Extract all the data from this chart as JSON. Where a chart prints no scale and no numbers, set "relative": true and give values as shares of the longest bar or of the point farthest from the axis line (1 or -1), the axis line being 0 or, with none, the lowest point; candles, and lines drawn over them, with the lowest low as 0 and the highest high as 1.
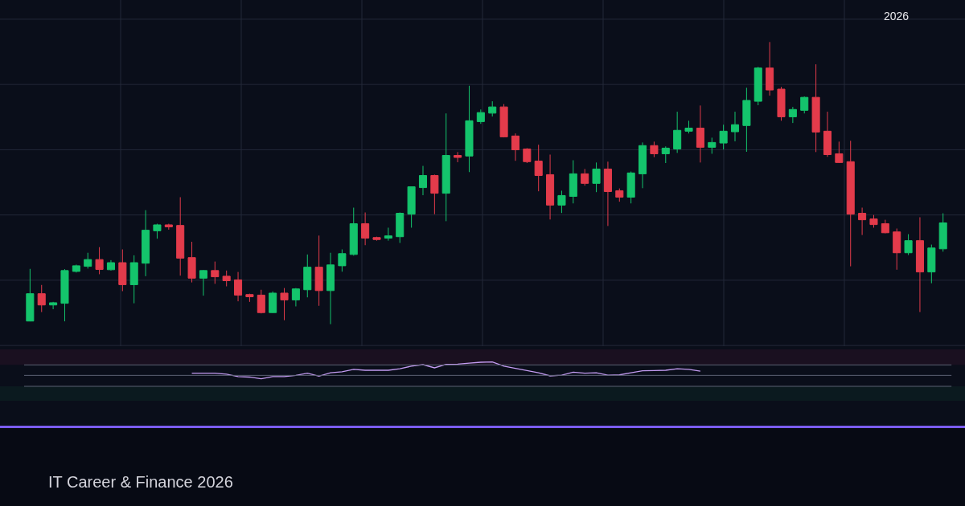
{
  "chart_data": [
    {
      "type": "candlestick",
      "subtitle": "IT Career & Finance 2026",
      "annotations": [
        "2026"
      ],
      "relative": true,
      "grid": true,
      "categories": [
        null,
        null,
        null,
        null,
        null,
        null,
        null,
        null,
        null,
        null,
        null,
        null,
        null,
        null,
        null,
        null,
        null,
        null,
        null,
        null,
        null,
        null,
        null,
        null,
        null,
        null,
        null,
        null,
        null,
        null,
        null,
        null,
        null,
        null,
        null,
        null,
        null,
        null,
        null,
        null,
        null,
        null,
        null,
        null,
        null,
        null,
        null,
        null,
        null,
        null,
        null,
        null,
        null,
        null,
        null,
        null,
        null,
        null,
        null,
        null,
        null,
        null,
        null,
        null,
        null,
        null,
        null,
        null,
        null,
        null,
        null,
        null,
        null,
        null,
        null,
        null,
        null,
        null,
        null,
        null
      ],
      "ohlc": [
        [
          0.011,
          0.196,
          0.01,
          0.108
        ],
        [
          0.108,
          0.139,
          0.043,
          0.068
        ],
        [
          0.068,
          0.079,
          0.053,
          0.076
        ],
        [
          0.074,
          0.195,
          0.01,
          0.19
        ],
        [
          0.187,
          0.211,
          0.183,
          0.207
        ],
        [
          0.205,
          0.253,
          0.197,
          0.229
        ],
        [
          0.229,
          0.273,
          0.177,
          0.194
        ],
        [
          0.193,
          0.227,
          0.19,
          0.218
        ],
        [
          0.218,
          0.265,
          0.117,
          0.14
        ],
        [
          0.14,
          0.244,
          0.074,
          0.218
        ],
        [
          0.216,
          0.404,
          0.17,
          0.333
        ],
        [
          0.331,
          0.356,
          0.303,
          0.352
        ],
        [
          0.352,
          0.356,
          0.335,
          0.345
        ],
        [
          0.35,
          0.45,
          0.172,
          0.234
        ],
        [
          0.236,
          0.292,
          0.148,
          0.163
        ],
        [
          0.163,
          0.192,
          0.101,
          0.19
        ],
        [
          0.19,
          0.222,
          0.143,
          0.168
        ],
        [
          0.17,
          0.19,
          0.134,
          0.154
        ],
        [
          0.157,
          0.185,
          0.081,
          0.103
        ],
        [
          0.105,
          0.108,
          0.079,
          0.097
        ],
        [
          0.103,
          0.122,
          0.038,
          0.041
        ],
        [
          0.041,
          0.116,
          0.04,
          0.11
        ],
        [
          0.11,
          0.128,
          0.014,
          0.086
        ],
        [
          0.086,
          0.128,
          0.063,
          0.125
        ],
        [
          0.122,
          0.247,
          0.095,
          0.202
        ],
        [
          0.202,
          0.314,
          0.065,
          0.119
        ],
        [
          0.119,
          0.253,
          0.0,
          0.21
        ],
        [
          0.207,
          0.265,
          0.186,
          0.25
        ],
        [
          0.247,
          0.413,
          0.243,
          0.356
        ],
        [
          0.356,
          0.396,
          0.28,
          0.305
        ],
        [
          0.307,
          0.31,
          0.296,
          0.3
        ],
        [
          0.305,
          0.342,
          0.296,
          0.313
        ],
        [
          0.31,
          0.396,
          0.288,
          0.393
        ],
        [
          0.39,
          0.487,
          0.342,
          0.487
        ],
        [
          0.484,
          0.561,
          0.457,
          0.527
        ],
        [
          0.527,
          0.53,
          0.39,
          0.464
        ],
        [
          0.464,
          0.747,
          0.365,
          0.598
        ],
        [
          0.598,
          0.61,
          0.574,
          0.591
        ],
        [
          0.596,
          0.845,
          0.539,
          0.721
        ],
        [
          0.718,
          0.761,
          0.71,
          0.75
        ],
        [
          0.748,
          0.79,
          0.736,
          0.77
        ],
        [
          0.77,
          0.78,
          0.662,
          0.664
        ],
        [
          0.667,
          0.676,
          0.579,
          0.618
        ],
        [
          0.621,
          0.624,
          0.571,
          0.576
        ],
        [
          0.578,
          0.636,
          0.471,
          0.527
        ],
        [
          0.53,
          0.601,
          0.371,
          0.422
        ],
        [
          0.422,
          0.473,
          0.394,
          0.456
        ],
        [
          0.453,
          0.581,
          0.428,
          0.533
        ],
        [
          0.533,
          0.55,
          0.491,
          0.499
        ],
        [
          0.499,
          0.573,
          0.468,
          0.55
        ],
        [
          0.55,
          0.576,
          0.348,
          0.47
        ],
        [
          0.473,
          0.481,
          0.434,
          0.45
        ],
        [
          0.45,
          0.541,
          0.428,
          0.536
        ],
        [
          0.533,
          0.644,
          0.482,
          0.633
        ],
        [
          0.633,
          0.647,
          0.592,
          0.604
        ],
        [
          0.604,
          0.63,
          0.571,
          0.624
        ],
        [
          0.621,
          0.753,
          0.607,
          0.687
        ],
        [
          0.684,
          0.721,
          0.676,
          0.695
        ],
        [
          0.695,
          0.775,
          0.573,
          0.627
        ],
        [
          0.627,
          0.661,
          0.604,
          0.644
        ],
        [
          0.642,
          0.707,
          0.619,
          0.684
        ],
        [
          0.682,
          0.753,
          0.648,
          0.707
        ],
        [
          0.704,
          0.838,
          0.611,
          0.793
        ],
        [
          0.79,
          0.912,
          0.776,
          0.908
        ],
        [
          0.908,
          1.0,
          0.81,
          0.83
        ],
        [
          0.833,
          0.841,
          0.721,
          0.735
        ],
        [
          0.735,
          0.77,
          0.713,
          0.761
        ],
        [
          0.758,
          0.807,
          0.747,
          0.804
        ],
        [
          0.804,
          0.921,
          0.61,
          0.681
        ],
        [
          0.684,
          0.753,
          0.593,
          0.601
        ],
        [
          0.604,
          0.647,
          0.571,
          0.573
        ],
        [
          0.576,
          0.65,
          0.205,
          0.39
        ],
        [
          0.393,
          0.413,
          0.316,
          0.37
        ],
        [
          0.373,
          0.387,
          0.342,
          0.353
        ],
        [
          0.356,
          0.37,
          0.322,
          0.324
        ],
        [
          0.327,
          0.339,
          0.193,
          0.253
        ],
        [
          0.253,
          0.319,
          0.245,
          0.296
        ],
        [
          0.296,
          0.379,
          0.043,
          0.185
        ],
        [
          0.185,
          0.282,
          0.145,
          0.27
        ],
        [
          0.267,
          0.393,
          0.257,
          0.359
        ]
      ],
      "colors": [
        "#14c46c",
        "#e33b4b",
        "#14c46c",
        "#14c46c",
        "#14c46c",
        "#14c46c",
        "#e33b4b",
        "#14c46c",
        "#e33b4b",
        "#14c46c",
        "#14c46c",
        "#14c46c",
        "#e33b4b",
        "#e33b4b",
        "#e33b4b",
        "#14c46c",
        "#e33b4b",
        "#e33b4b",
        "#e33b4b",
        "#e33b4b",
        "#e33b4b",
        "#14c46c",
        "#e33b4b",
        "#14c46c",
        "#14c46c",
        "#e33b4b",
        "#14c46c",
        "#14c46c",
        "#14c46c",
        "#e33b4b",
        "#e33b4b",
        "#14c46c",
        "#14c46c",
        "#14c46c",
        "#14c46c",
        "#e33b4b",
        "#14c46c",
        "#e33b4b",
        "#14c46c",
        "#14c46c",
        "#14c46c",
        "#e33b4b",
        "#e33b4b",
        "#e33b4b",
        "#e33b4b",
        "#e33b4b",
        "#14c46c",
        "#14c46c",
        "#e33b4b",
        "#14c46c",
        "#e33b4b",
        "#e33b4b",
        "#14c46c",
        "#14c46c",
        "#e33b4b",
        "#14c46c",
        "#14c46c",
        "#14c46c",
        "#e33b4b",
        "#14c46c",
        "#14c46c",
        "#14c46c",
        "#14c46c",
        "#14c46c",
        "#e33b4b",
        "#e33b4b",
        "#14c46c",
        "#14c46c",
        "#e33b4b",
        "#e33b4b",
        "#e33b4b",
        "#e33b4b",
        "#e33b4b",
        "#e33b4b",
        "#e33b4b",
        "#e33b4b",
        "#14c46c",
        "#e33b4b",
        "#14c46c",
        "#14c46c"
      ]
    },
    {
      "type": "line",
      "relative": true,
      "categories": [
        null,
        null,
        null,
        null,
        null,
        null,
        null,
        null,
        null,
        null,
        null,
        null,
        null,
        null,
        null,
        null,
        null,
        null,
        null,
        null,
        null,
        null,
        null,
        null,
        null,
        null,
        null,
        null,
        null,
        null,
        null,
        null,
        null,
        null,
        null,
        null,
        null,
        null,
        null,
        null,
        null,
        null,
        null,
        null,
        null,
        null,
        null,
        null,
        null,
        null,
        null,
        null,
        null,
        null,
        null,
        null,
        null,
        null,
        null,
        null,
        null,
        null,
        null,
        null,
        null,
        null,
        null,
        null,
        null,
        null,
        null,
        null,
        null,
        null,
        null,
        null,
        null,
        null,
        null,
        null
      ],
      "series": [
        {
          "color": "#c49cf2",
          "values": [
            null,
            null,
            null,
            null,
            null,
            null,
            null,
            null,
            null,
            null,
            null,
            null,
            null,
            null,
            0.54,
            0.54,
            0.54,
            0.5,
            0.4,
            0.38,
            0.31,
            0.4,
            0.4,
            0.45,
            0.54,
            0.42,
            0.56,
            0.6,
            0.7,
            0.66,
            0.66,
            0.66,
            0.72,
            0.83,
            0.89,
            0.76,
            0.9,
            0.91,
            0.95,
            0.99,
            1,
            0.83,
            0.74,
            0.65,
            0.56,
            0.43,
            0.46,
            0.58,
            0.54,
            0.56,
            0.46,
            0.47,
            0.56,
            0.64,
            0.65,
            0.66,
            0.72,
            0.7,
            0.62,
            null,
            null,
            null,
            null,
            null,
            null,
            null,
            null,
            null,
            null,
            null,
            null,
            null,
            null,
            null,
            null,
            null,
            null,
            null,
            null,
            null
          ]
        }
      ],
      "ref_lines": [
        {
          "axis": "y",
          "value": 0.88,
          "color": "#5b6172"
        },
        {
          "axis": "y",
          "value": 0.45,
          "color": "#5b6172"
        },
        {
          "axis": "y",
          "value": 0,
          "color": "#5b6172"
        }
      ],
      "bands": [
        {
          "axis": "y",
          "from": 0.88,
          "to": 1.52,
          "color": "#1a1020"
        },
        {
          "axis": "y",
          "from": -0.59,
          "to": 0,
          "color": "#0b1a1f"
        }
      ]
    }
  ]
}
